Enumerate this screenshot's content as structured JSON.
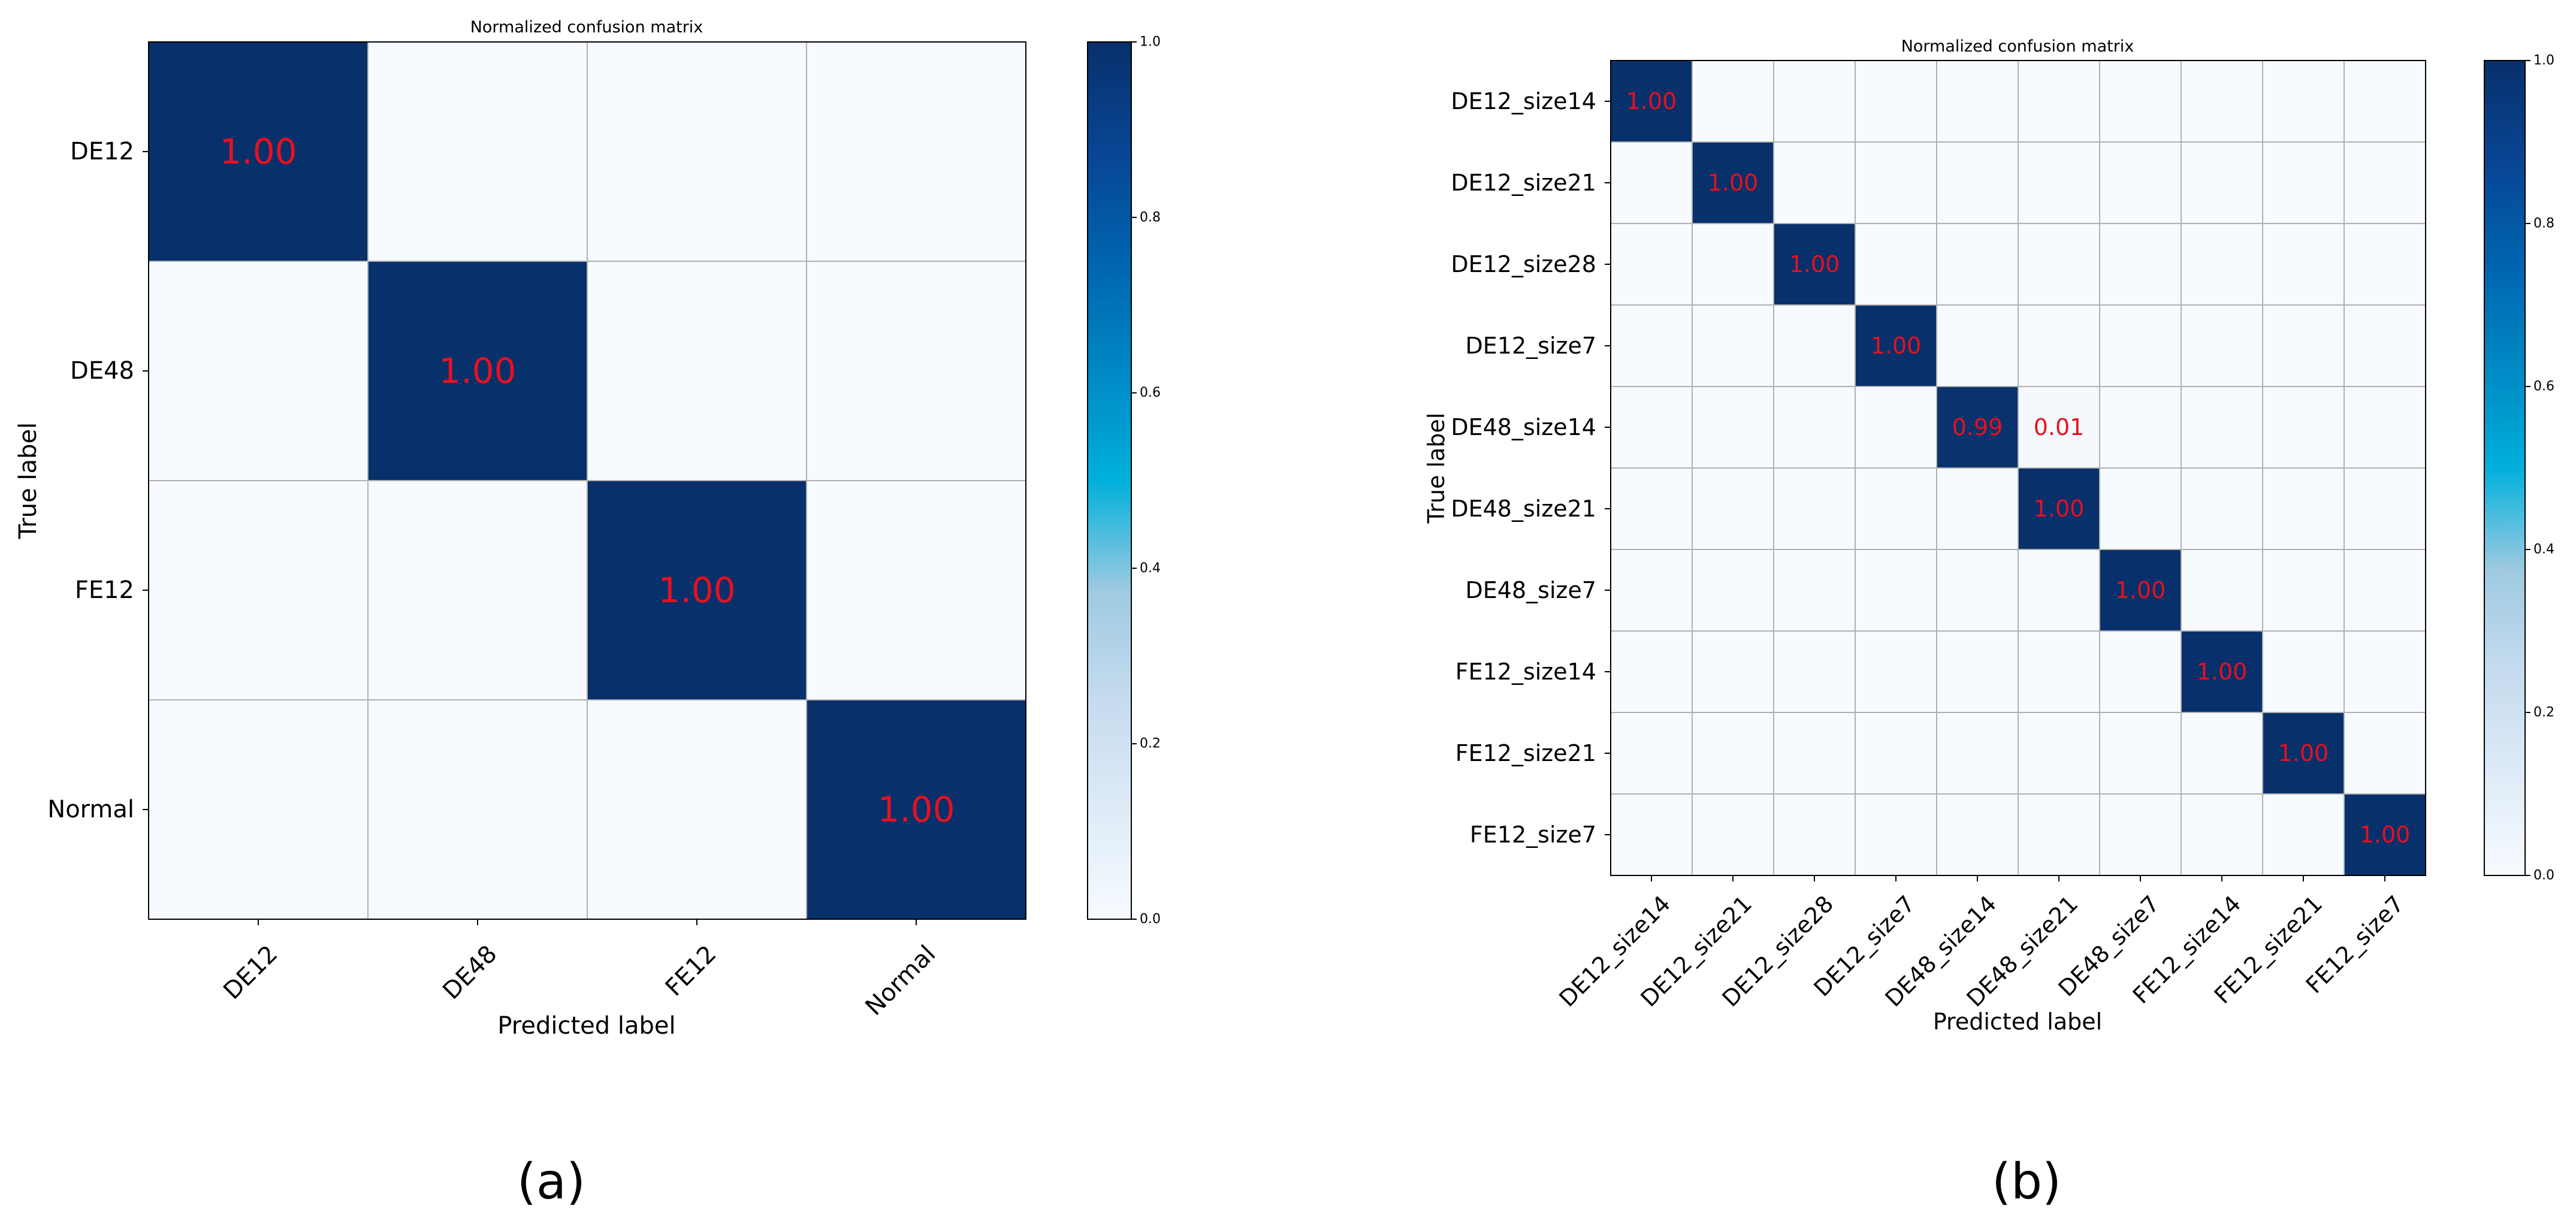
{
  "figure": {
    "panels": [
      "(a)",
      "(b)"
    ]
  },
  "chart_data": [
    {
      "type": "heatmap",
      "title": "Normalized confusion matrix",
      "xlabel": "Predicted label",
      "ylabel": "True label",
      "x_categories": [
        "DE12",
        "DE48",
        "FE12",
        "Normal"
      ],
      "y_categories": [
        "DE12",
        "DE48",
        "FE12",
        "Normal"
      ],
      "values": [
        [
          1.0,
          0.0,
          0.0,
          0.0
        ],
        [
          0.0,
          1.0,
          0.0,
          0.0
        ],
        [
          0.0,
          0.0,
          1.0,
          0.0
        ],
        [
          0.0,
          0.0,
          0.0,
          1.0
        ]
      ],
      "cell_labels": [
        [
          0,
          0,
          "1.00"
        ],
        [
          1,
          1,
          "1.00"
        ],
        [
          2,
          2,
          "1.00"
        ],
        [
          3,
          3,
          "1.00"
        ]
      ],
      "colorbar": {
        "range": [
          0.0,
          1.0
        ],
        "ticks": [
          "0.0",
          "0.2",
          "0.4",
          "0.6",
          "0.8",
          "1.0"
        ]
      },
      "colormap": "Blues",
      "label_color": "#e8101f",
      "grid": true,
      "caption": "(a)"
    },
    {
      "type": "heatmap",
      "title": "Normalized confusion matrix",
      "xlabel": "Predicted label",
      "ylabel": "True label",
      "x_categories": [
        "DE12_size14",
        "DE12_size21",
        "DE12_size28",
        "DE12_size7",
        "DE48_size14",
        "DE48_size21",
        "DE48_size7",
        "FE12_size14",
        "FE12_size21",
        "FE12_size7"
      ],
      "y_categories": [
        "DE12_size14",
        "DE12_size21",
        "DE12_size28",
        "DE12_size7",
        "DE48_size14",
        "DE48_size21",
        "DE48_size7",
        "FE12_size14",
        "FE12_size21",
        "FE12_size7"
      ],
      "values": [
        [
          1.0,
          0,
          0,
          0,
          0,
          0,
          0,
          0,
          0,
          0
        ],
        [
          0,
          1.0,
          0,
          0,
          0,
          0,
          0,
          0,
          0,
          0
        ],
        [
          0,
          0,
          1.0,
          0,
          0,
          0,
          0,
          0,
          0,
          0
        ],
        [
          0,
          0,
          0,
          1.0,
          0,
          0,
          0,
          0,
          0,
          0
        ],
        [
          0,
          0,
          0,
          0,
          0.99,
          0.01,
          0,
          0,
          0,
          0
        ],
        [
          0,
          0,
          0,
          0,
          0,
          1.0,
          0,
          0,
          0,
          0
        ],
        [
          0,
          0,
          0,
          0,
          0,
          0,
          1.0,
          0,
          0,
          0
        ],
        [
          0,
          0,
          0,
          0,
          0,
          0,
          0,
          1.0,
          0,
          0
        ],
        [
          0,
          0,
          0,
          0,
          0,
          0,
          0,
          0,
          1.0,
          0
        ],
        [
          0,
          0,
          0,
          0,
          0,
          0,
          0,
          0,
          0,
          1.0
        ]
      ],
      "cell_labels": [
        [
          0,
          0,
          "1.00"
        ],
        [
          1,
          1,
          "1.00"
        ],
        [
          2,
          2,
          "1.00"
        ],
        [
          3,
          3,
          "1.00"
        ],
        [
          4,
          4,
          "0.99"
        ],
        [
          4,
          5,
          "0.01"
        ],
        [
          5,
          5,
          "1.00"
        ],
        [
          6,
          6,
          "1.00"
        ],
        [
          7,
          7,
          "1.00"
        ],
        [
          8,
          8,
          "1.00"
        ],
        [
          9,
          9,
          "1.00"
        ]
      ],
      "colorbar": {
        "range": [
          0.0,
          1.0
        ],
        "ticks": [
          "0.0",
          "0.2",
          "0.4",
          "0.6",
          "0.8",
          "1.0"
        ]
      },
      "colormap": "Blues",
      "label_color": "#e8101f",
      "grid": true,
      "caption": "(b)"
    }
  ]
}
